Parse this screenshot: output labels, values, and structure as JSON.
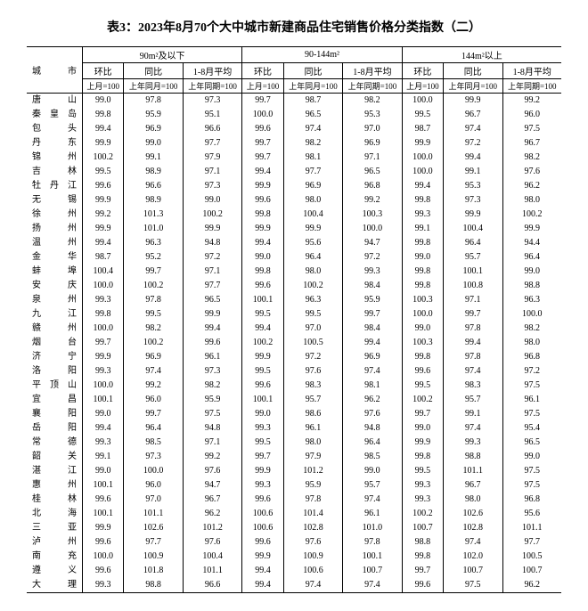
{
  "title": "表3：2023年8月70个大中城市新建商品住宅销售价格分类指数（二）",
  "header": {
    "city": "城市",
    "groups": [
      "90m²及以下",
      "90-144m²",
      "144m²以上"
    ],
    "sub1": [
      "环比",
      "同比",
      "1-8月平均"
    ],
    "sub2": [
      "上月=100",
      "上年同月=100",
      "上年同期=100"
    ]
  },
  "rows": [
    {
      "c": "唐　　山",
      "v": [
        "99.0",
        "97.8",
        "97.3",
        "99.7",
        "98.7",
        "98.2",
        "100.0",
        "99.9",
        "99.2"
      ]
    },
    {
      "c": "秦 皇 岛",
      "v": [
        "99.8",
        "95.9",
        "95.1",
        "100.0",
        "96.5",
        "95.3",
        "99.5",
        "96.7",
        "96.0"
      ]
    },
    {
      "c": "包　　头",
      "v": [
        "99.4",
        "96.9",
        "96.6",
        "99.6",
        "97.4",
        "97.0",
        "98.7",
        "97.4",
        "97.5"
      ]
    },
    {
      "c": "丹　　东",
      "v": [
        "99.9",
        "99.0",
        "97.7",
        "99.7",
        "98.2",
        "96.9",
        "99.9",
        "97.2",
        "96.7"
      ]
    },
    {
      "c": "锦　　州",
      "v": [
        "100.2",
        "99.1",
        "97.9",
        "99.7",
        "98.1",
        "97.1",
        "100.0",
        "99.4",
        "98.2"
      ]
    },
    {
      "c": "吉　　林",
      "v": [
        "99.5",
        "98.9",
        "97.1",
        "99.4",
        "97.7",
        "96.5",
        "100.0",
        "99.1",
        "97.6"
      ]
    },
    {
      "c": "牡 丹 江",
      "v": [
        "99.6",
        "96.6",
        "97.3",
        "99.9",
        "96.9",
        "96.8",
        "99.4",
        "95.3",
        "96.2"
      ]
    },
    {
      "c": "无　　锡",
      "v": [
        "99.9",
        "98.9",
        "99.0",
        "99.6",
        "98.0",
        "99.2",
        "99.8",
        "97.3",
        "98.0"
      ]
    },
    {
      "c": "徐　　州",
      "v": [
        "99.2",
        "101.3",
        "100.2",
        "99.8",
        "100.4",
        "100.3",
        "99.3",
        "99.9",
        "100.2"
      ]
    },
    {
      "c": "扬　　州",
      "v": [
        "99.9",
        "101.0",
        "99.9",
        "99.9",
        "99.9",
        "100.0",
        "99.1",
        "100.4",
        "99.9"
      ]
    },
    {
      "c": "温　　州",
      "v": [
        "99.4",
        "96.3",
        "94.8",
        "99.4",
        "95.6",
        "94.7",
        "99.8",
        "96.4",
        "94.4"
      ]
    },
    {
      "c": "金　　华",
      "v": [
        "98.7",
        "95.2",
        "97.2",
        "99.0",
        "96.4",
        "97.2",
        "99.0",
        "95.7",
        "96.4"
      ]
    },
    {
      "c": "蚌　　埠",
      "v": [
        "100.4",
        "99.7",
        "97.1",
        "99.8",
        "98.0",
        "99.3",
        "99.8",
        "100.1",
        "99.0"
      ]
    },
    {
      "c": "安　　庆",
      "v": [
        "100.0",
        "100.2",
        "97.7",
        "99.6",
        "100.2",
        "98.4",
        "99.8",
        "100.8",
        "98.8"
      ]
    },
    {
      "c": "泉　　州",
      "v": [
        "99.3",
        "97.8",
        "96.5",
        "100.1",
        "96.3",
        "95.9",
        "100.3",
        "97.1",
        "96.3"
      ]
    },
    {
      "c": "九　　江",
      "v": [
        "99.8",
        "99.5",
        "99.9",
        "99.5",
        "99.5",
        "99.7",
        "100.0",
        "99.7",
        "100.0"
      ]
    },
    {
      "c": "赣　　州",
      "v": [
        "100.0",
        "98.2",
        "99.4",
        "99.4",
        "97.0",
        "98.4",
        "99.0",
        "97.8",
        "98.2"
      ]
    },
    {
      "c": "烟　　台",
      "v": [
        "99.7",
        "100.2",
        "99.6",
        "100.2",
        "100.5",
        "99.4",
        "100.3",
        "99.4",
        "98.0"
      ]
    },
    {
      "c": "济　　宁",
      "v": [
        "99.9",
        "96.9",
        "96.1",
        "99.9",
        "97.2",
        "96.9",
        "99.8",
        "97.8",
        "96.8"
      ]
    },
    {
      "c": "洛　　阳",
      "v": [
        "99.3",
        "97.4",
        "97.3",
        "99.5",
        "97.6",
        "97.4",
        "99.6",
        "97.4",
        "97.2"
      ]
    },
    {
      "c": "平 顶 山",
      "v": [
        "100.0",
        "99.2",
        "98.2",
        "99.6",
        "98.3",
        "98.1",
        "99.5",
        "98.3",
        "97.5"
      ]
    },
    {
      "c": "宜　　昌",
      "v": [
        "100.1",
        "96.0",
        "95.9",
        "100.1",
        "95.7",
        "96.2",
        "100.2",
        "95.7",
        "96.1"
      ]
    },
    {
      "c": "襄　　阳",
      "v": [
        "99.0",
        "99.7",
        "97.5",
        "99.0",
        "98.6",
        "97.6",
        "99.7",
        "99.1",
        "97.5"
      ]
    },
    {
      "c": "岳　　阳",
      "v": [
        "99.4",
        "96.4",
        "94.8",
        "99.3",
        "96.1",
        "94.8",
        "99.0",
        "97.4",
        "95.4"
      ]
    },
    {
      "c": "常　　德",
      "v": [
        "99.3",
        "98.5",
        "97.1",
        "99.5",
        "98.0",
        "96.4",
        "99.9",
        "99.3",
        "96.5"
      ]
    },
    {
      "c": "韶　　关",
      "v": [
        "99.1",
        "97.3",
        "99.2",
        "99.7",
        "97.9",
        "98.5",
        "99.8",
        "98.8",
        "99.0"
      ]
    },
    {
      "c": "湛　　江",
      "v": [
        "99.0",
        "100.0",
        "97.6",
        "99.9",
        "101.2",
        "99.0",
        "99.5",
        "101.1",
        "97.5"
      ]
    },
    {
      "c": "惠　　州",
      "v": [
        "100.1",
        "96.0",
        "94.7",
        "99.3",
        "95.9",
        "95.7",
        "99.3",
        "96.7",
        "97.5"
      ]
    },
    {
      "c": "桂　　林",
      "v": [
        "99.6",
        "97.0",
        "96.7",
        "99.6",
        "97.8",
        "97.4",
        "99.3",
        "98.0",
        "96.8"
      ]
    },
    {
      "c": "北　　海",
      "v": [
        "100.1",
        "101.1",
        "96.2",
        "100.6",
        "101.4",
        "96.1",
        "100.2",
        "102.6",
        "95.6"
      ]
    },
    {
      "c": "三　　亚",
      "v": [
        "99.9",
        "102.6",
        "101.2",
        "100.6",
        "102.8",
        "101.0",
        "100.7",
        "102.8",
        "101.1"
      ]
    },
    {
      "c": "泸　　州",
      "v": [
        "99.6",
        "97.7",
        "97.6",
        "99.6",
        "97.6",
        "97.8",
        "98.8",
        "97.4",
        "97.7"
      ]
    },
    {
      "c": "南　　充",
      "v": [
        "100.0",
        "100.9",
        "100.4",
        "99.9",
        "100.9",
        "100.1",
        "99.8",
        "102.0",
        "100.5"
      ]
    },
    {
      "c": "遵　　义",
      "v": [
        "99.6",
        "101.8",
        "101.1",
        "99.4",
        "100.6",
        "100.7",
        "99.7",
        "100.7",
        "100.7"
      ]
    },
    {
      "c": "大　　理",
      "v": [
        "99.3",
        "98.8",
        "96.6",
        "99.4",
        "97.4",
        "97.4",
        "99.6",
        "97.5",
        "96.2"
      ]
    }
  ]
}
